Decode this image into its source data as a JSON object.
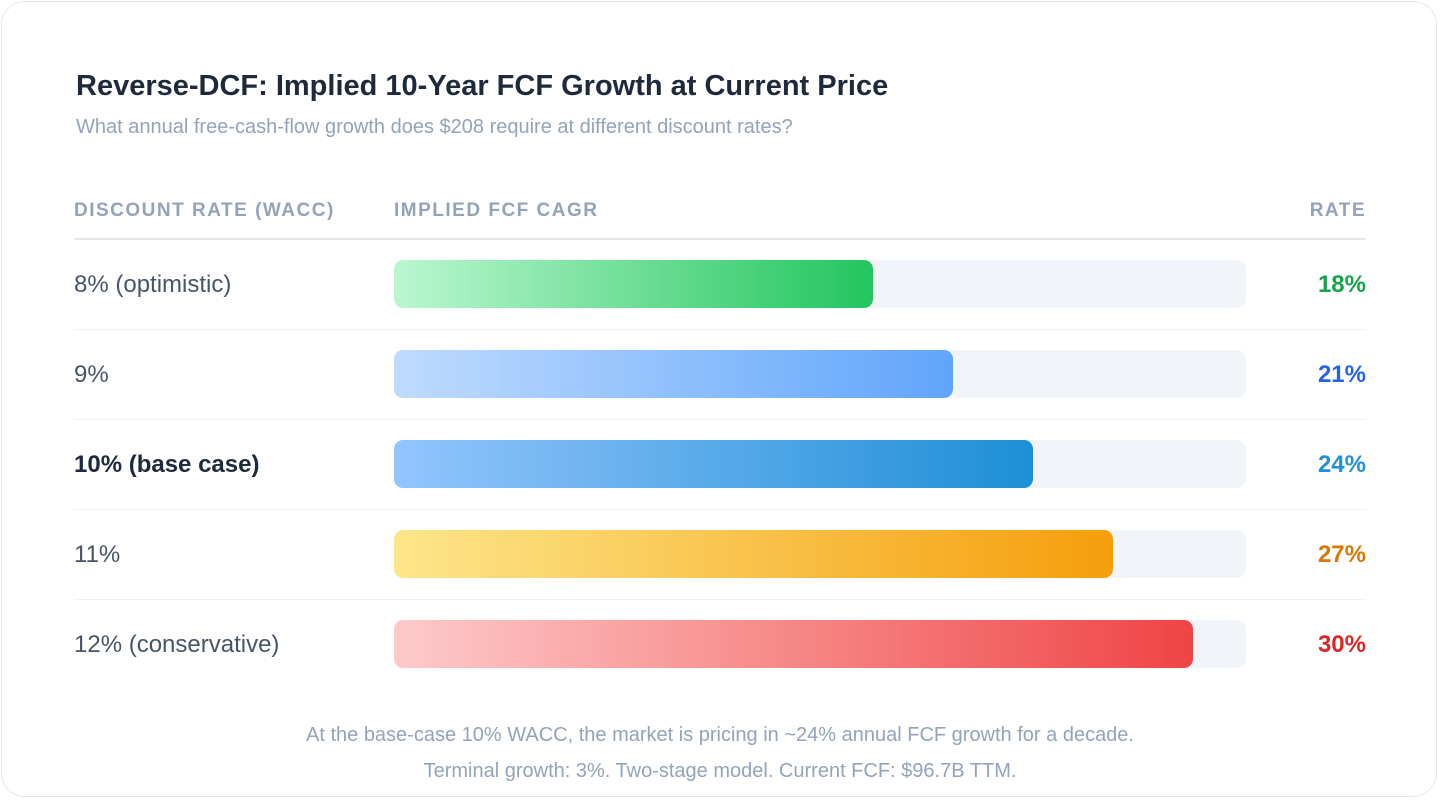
{
  "chart_data": {
    "type": "bar",
    "orientation": "horizontal",
    "title": "Reverse-DCF: Implied 10-Year FCF Growth at Current Price",
    "subtitle": "What annual free-cash-flow growth does $208 require at different discount rates?",
    "columns": {
      "label": "DISCOUNT RATE (WACC)",
      "bar": "IMPLIED FCF CAGR",
      "value": "RATE"
    },
    "categories": [
      "8% (optimistic)",
      "9%",
      "10% (base case)",
      "11%",
      "12% (conservative)"
    ],
    "values": [
      18,
      21,
      24,
      27,
      30
    ],
    "value_labels": [
      "18%",
      "21%",
      "24%",
      "27%",
      "30%"
    ],
    "xlim": [
      0,
      32
    ],
    "highlight_index": 2,
    "colors": [
      {
        "from": "#bbf7d0",
        "to": "#22c55e",
        "text": "#16a34a"
      },
      {
        "from": "#bfdbfe",
        "to": "#60a5fa",
        "text": "#2563eb"
      },
      {
        "from": "#93c5fd",
        "to": "#1d8fd6",
        "text": "#2190d4"
      },
      {
        "from": "#fde68a",
        "to": "#f59e0b",
        "text": "#d97706"
      },
      {
        "from": "#fecaca",
        "to": "#ef4444",
        "text": "#dc2626"
      }
    ],
    "grid": false,
    "legend": "none"
  },
  "footnotes": [
    "At the base-case 10% WACC, the market is pricing in ~24% annual FCF growth for a decade.",
    "Terminal growth: 3%. Two-stage model. Current FCF: $96.7B TTM."
  ]
}
